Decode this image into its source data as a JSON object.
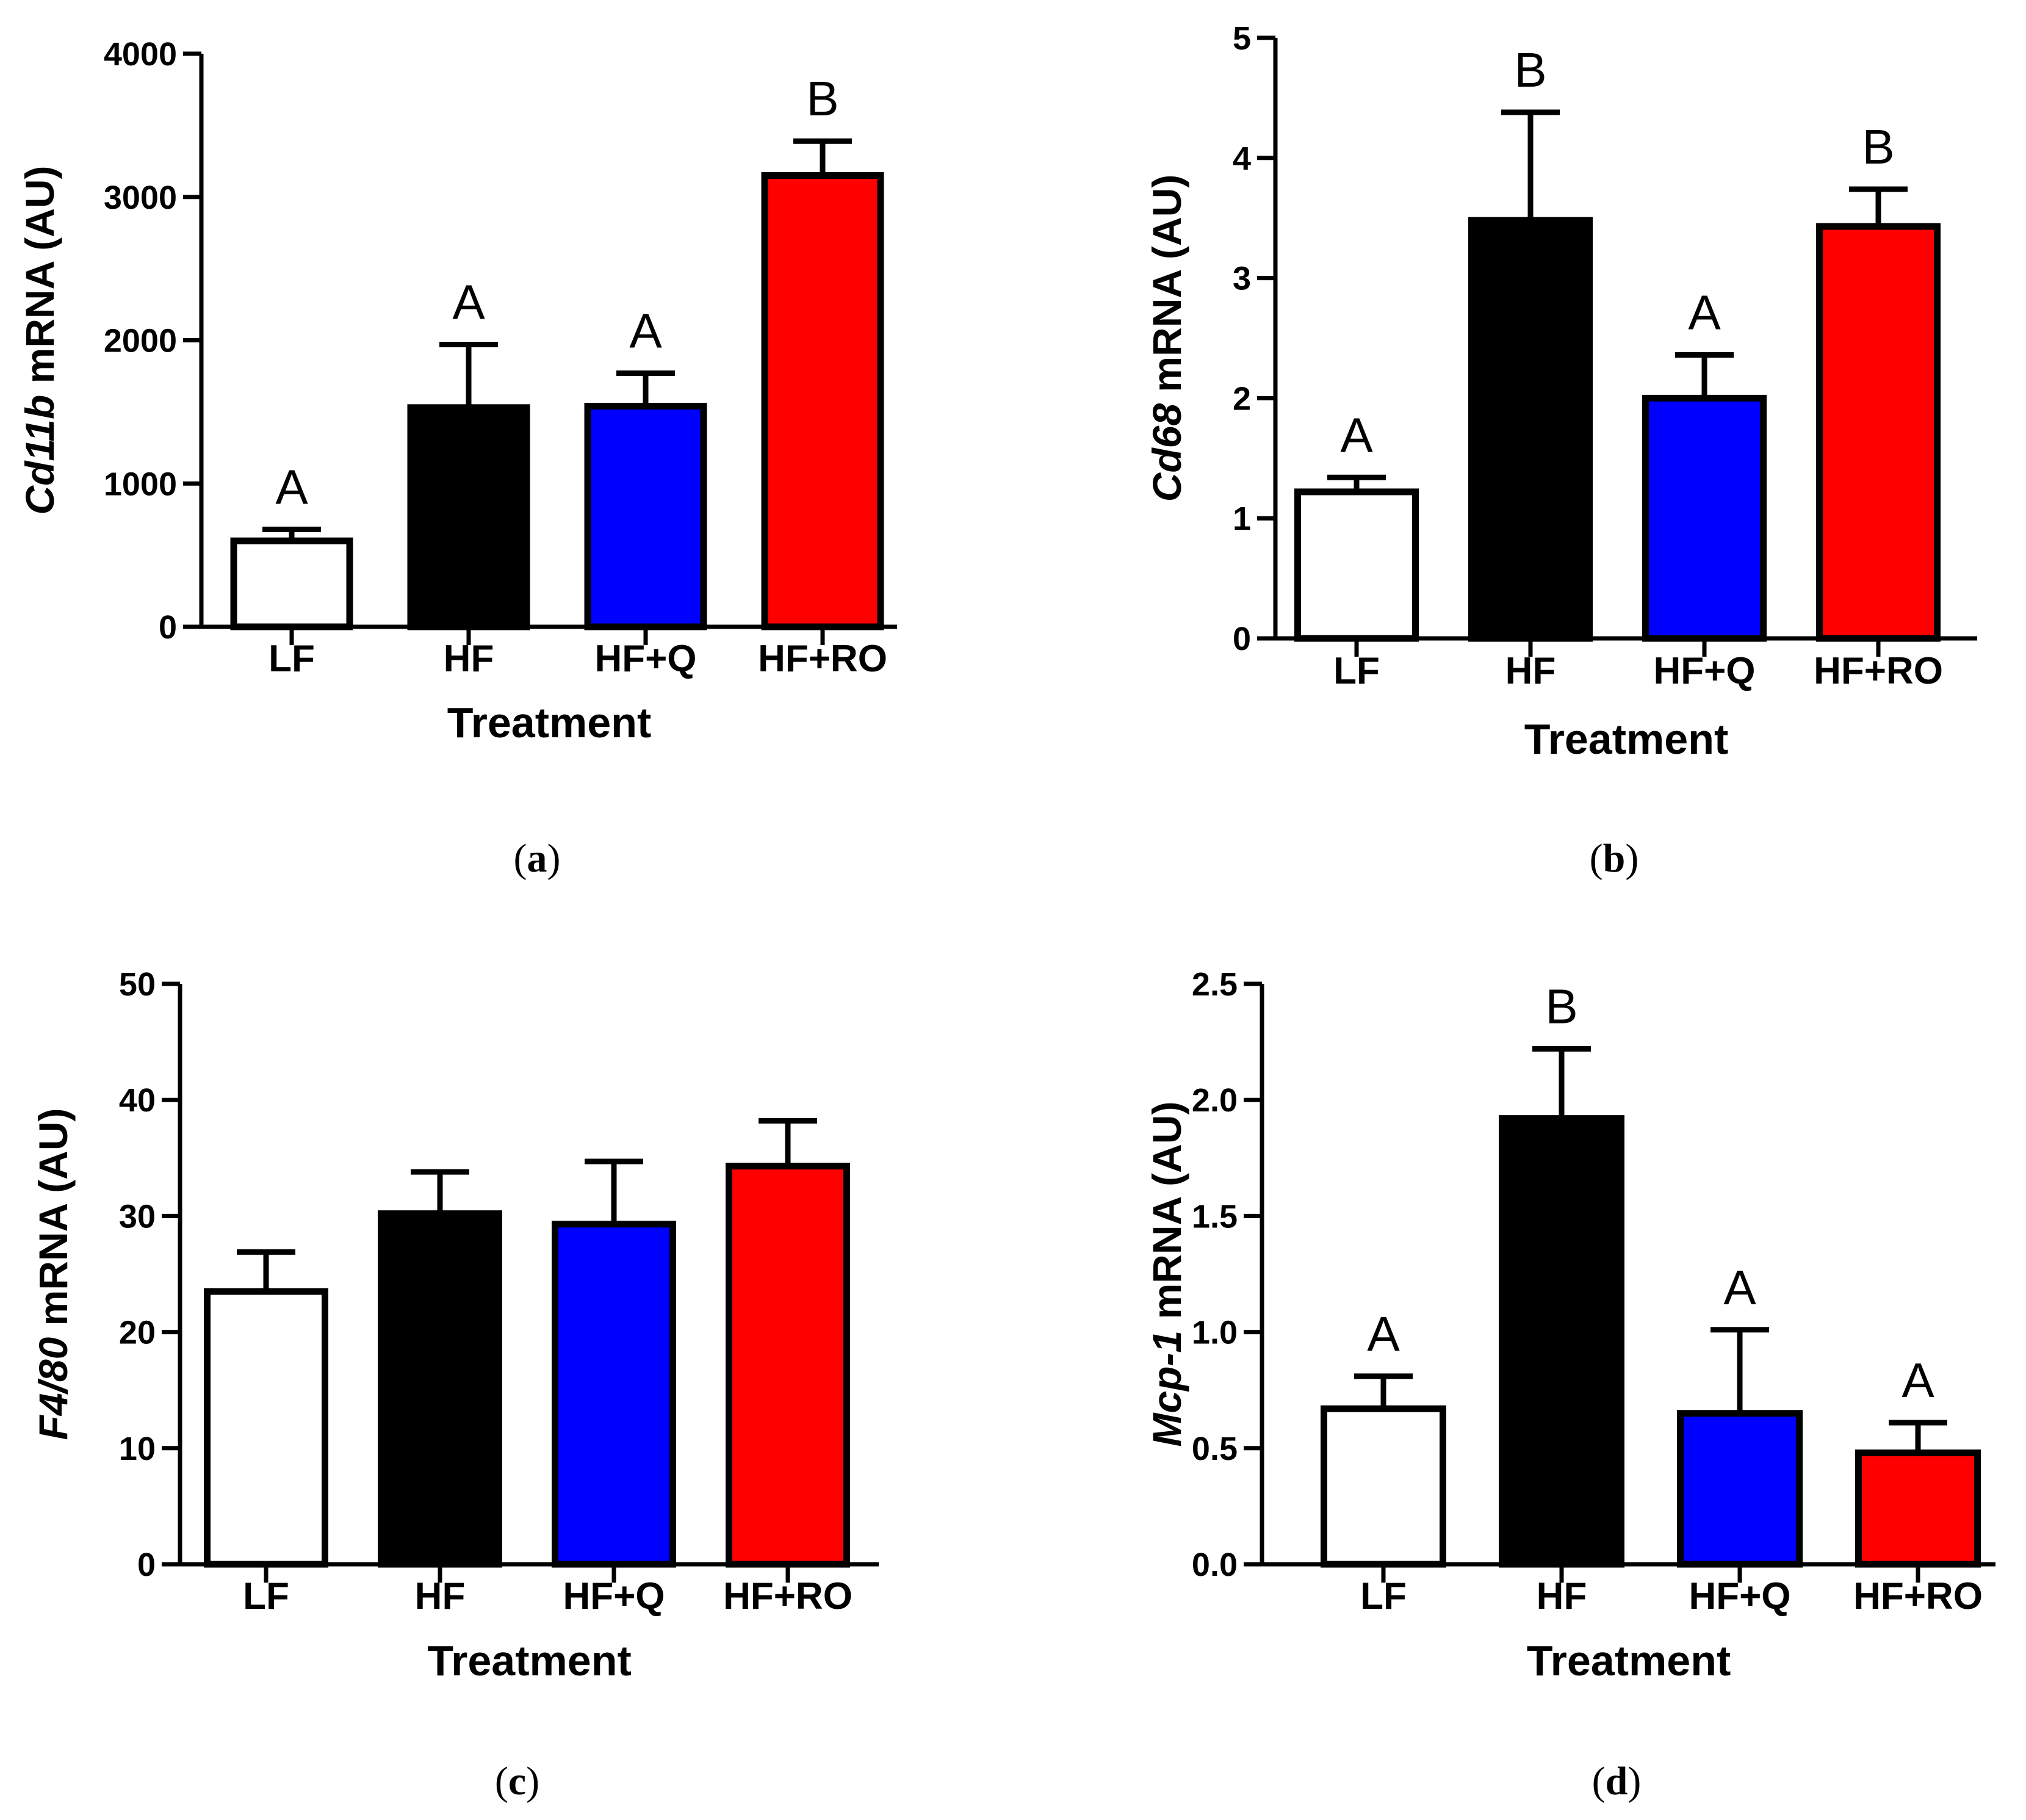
{
  "chart_data": [
    {
      "type": "bar",
      "panel": "a",
      "categories": [
        "LF",
        "HF",
        "HF+Q",
        "HF+RO"
      ],
      "values": [
        600,
        1530,
        1540,
        3150
      ],
      "errors": [
        80,
        440,
        230,
        240
      ],
      "colors": [
        "#ffffff",
        "#000000",
        "#0000ff",
        "#ff0000"
      ],
      "significance": [
        "A",
        "A",
        "A",
        "B"
      ],
      "ylabel_italic": "Cd11b",
      "ylabel_rest": " mRNA (AU)",
      "xlabel": "Treatment",
      "ylim": [
        0,
        4000
      ],
      "yticks": [
        0,
        1000,
        2000,
        3000,
        4000
      ],
      "ytick_labels": [
        "0",
        "1000",
        "2000",
        "3000",
        "4000"
      ]
    },
    {
      "type": "bar",
      "panel": "b",
      "categories": [
        "LF",
        "HF",
        "HF+Q",
        "HF+RO"
      ],
      "values": [
        1.22,
        3.48,
        2.0,
        3.43
      ],
      "errors": [
        0.12,
        0.9,
        0.36,
        0.31
      ],
      "colors": [
        "#ffffff",
        "#000000",
        "#0000ff",
        "#ff0000"
      ],
      "significance": [
        "A",
        "B",
        "A",
        "B"
      ],
      "ylabel_italic": "Cd68",
      "ylabel_rest": " mRNA (AU)",
      "xlabel": "Treatment",
      "ylim": [
        0,
        5
      ],
      "yticks": [
        0,
        1,
        2,
        3,
        4,
        5
      ],
      "ytick_labels": [
        "0",
        "1",
        "2",
        "3",
        "4",
        "5"
      ]
    },
    {
      "type": "bar",
      "panel": "c",
      "categories": [
        "LF",
        "HF",
        "HF+Q",
        "HF+RO"
      ],
      "values": [
        23.5,
        30.2,
        29.3,
        34.3
      ],
      "errors": [
        3.4,
        3.6,
        5.4,
        3.9
      ],
      "colors": [
        "#ffffff",
        "#000000",
        "#0000ff",
        "#ff0000"
      ],
      "significance": [
        "",
        "",
        "",
        ""
      ],
      "ylabel_italic": "F4/80",
      "ylabel_rest": " mRNA (AU)",
      "xlabel": "Treatment",
      "ylim": [
        0,
        50
      ],
      "yticks": [
        0,
        10,
        20,
        30,
        40,
        50
      ],
      "ytick_labels": [
        "0",
        "10",
        "20",
        "30",
        "40",
        "50"
      ]
    },
    {
      "type": "bar",
      "panel": "d",
      "categories": [
        "LF",
        "HF",
        "HF+Q",
        "HF+RO"
      ],
      "values": [
        0.67,
        1.92,
        0.65,
        0.48
      ],
      "errors": [
        0.14,
        0.3,
        0.36,
        0.13
      ],
      "colors": [
        "#ffffff",
        "#000000",
        "#0000ff",
        "#ff0000"
      ],
      "significance": [
        "A",
        "B",
        "A",
        "A"
      ],
      "ylabel_italic": "Mcp-1",
      "ylabel_rest": " mRNA (AU)",
      "xlabel": "Treatment",
      "ylim": [
        0,
        2.5
      ],
      "yticks": [
        0,
        0.5,
        1.0,
        1.5,
        2.0,
        2.5
      ],
      "ytick_labels": [
        "0.0",
        "0.5",
        "1.0",
        "1.5",
        "2.0",
        "2.5"
      ]
    }
  ]
}
